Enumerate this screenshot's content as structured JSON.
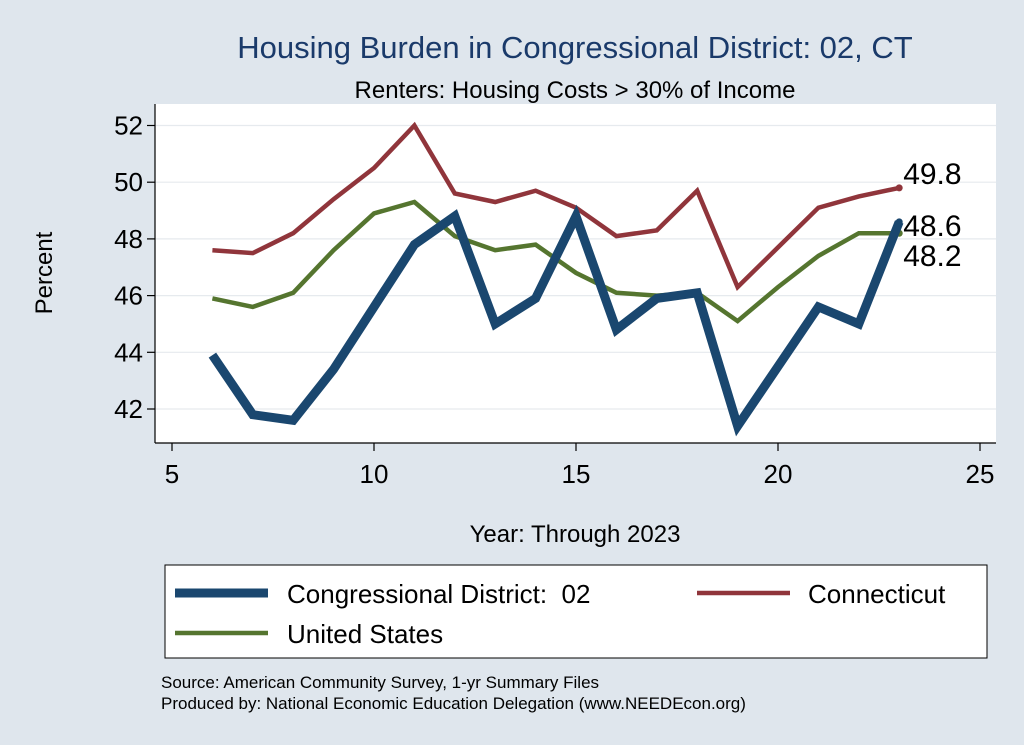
{
  "chart_data": {
    "type": "line",
    "title": "Housing Burden in Congressional District:  02, CT",
    "subtitle": "Renters: Housing Costs > 30% of Income",
    "xlabel": "Year: Through 2023",
    "ylabel": "Percent",
    "xlim": [
      5,
      25
    ],
    "ylim": [
      41,
      52.4
    ],
    "xticks": [
      5,
      10,
      15,
      20,
      25
    ],
    "yticks": [
      42,
      44,
      46,
      48,
      50,
      52
    ],
    "grid": true,
    "legend_position": "bottom",
    "x": [
      6,
      7,
      8,
      9,
      10,
      11,
      12,
      13,
      14,
      15,
      16,
      17,
      18,
      19,
      20,
      21,
      22,
      23
    ],
    "series": [
      {
        "name": "Congressional District:  02",
        "color": "#1a476f",
        "values": [
          43.9,
          41.8,
          41.6,
          43.4,
          45.6,
          47.8,
          48.8,
          45.0,
          45.9,
          48.8,
          44.8,
          45.9,
          46.1,
          41.4,
          43.5,
          45.6,
          45.0,
          48.6
        ],
        "end_label": "48.6"
      },
      {
        "name": "Connecticut",
        "color": "#90353b",
        "values": [
          47.6,
          47.5,
          48.2,
          49.4,
          50.5,
          52.0,
          49.6,
          49.3,
          49.7,
          49.1,
          48.1,
          48.3,
          49.7,
          46.3,
          47.7,
          49.1,
          49.5,
          49.8
        ],
        "end_label": "49.8"
      },
      {
        "name": "United States",
        "color": "#55752f",
        "values": [
          45.9,
          45.6,
          46.1,
          47.6,
          48.9,
          49.3,
          48.1,
          47.6,
          47.8,
          46.8,
          46.1,
          46.0,
          46.1,
          45.1,
          46.3,
          47.4,
          48.2,
          48.2
        ],
        "end_label": "48.2"
      }
    ]
  },
  "legend": {
    "items": [
      {
        "label": "Congressional District:  02"
      },
      {
        "label": "Connecticut"
      },
      {
        "label": "United States"
      }
    ]
  },
  "footer": {
    "source": "Source: American Community Survey, 1-yr Summary Files",
    "produced": "Produced by: National Economic Education Delegation (www.NEEDEcon.org)"
  }
}
